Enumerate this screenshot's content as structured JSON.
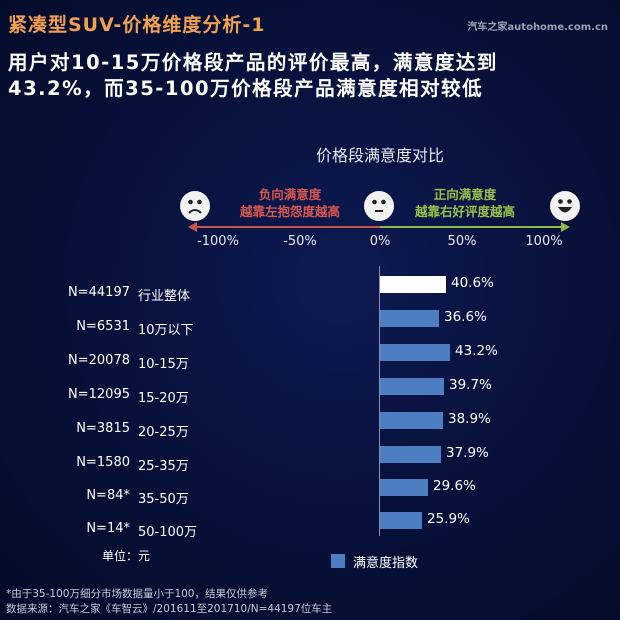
{
  "header": {
    "title": "紧凑型SUV-价格维度分析-1",
    "logo": "汽车之家autohome.com.cn",
    "subtitle_line1": "用户对10-15万价格段产品的评价最高，满意度达到",
    "subtitle_line2": "43.2%，而35-100万价格段产品满意度相对较低"
  },
  "scale": {
    "negative_label_1": "负向满意度",
    "negative_label_2": "越靠左抱怨度越高",
    "positive_label_1": "正向满意度",
    "positive_label_2": "越靠右好评度越高",
    "ticks": [
      "-100%",
      "-50%",
      "0%",
      "50%",
      "100%"
    ],
    "icons": [
      "sad-face-icon",
      "neutral-face-icon",
      "happy-face-icon"
    ],
    "negative_color": "#c9564d",
    "positive_color": "#8fb84a"
  },
  "legend": {
    "label": "满意度指数",
    "color": "#4e7ec2"
  },
  "unit": "单位：元",
  "footnotes": {
    "note": "*由于35-100万细分市场数据量小于100，结果仅供参考",
    "source": "数据来源：汽车之家《车智云》/201611至201710/N=44197位车主"
  },
  "rows": [
    {
      "n": "N=44197",
      "cat": "行业整体",
      "val": "40.6%"
    },
    {
      "n": "N=6531",
      "cat": "10万以下",
      "val": "36.6%"
    },
    {
      "n": "N=20078",
      "cat": "10-15万",
      "val": "43.2%"
    },
    {
      "n": "N=12095",
      "cat": "15-20万",
      "val": "39.7%"
    },
    {
      "n": "N=3815",
      "cat": "20-25万",
      "val": "38.9%"
    },
    {
      "n": "N=1580",
      "cat": "25-35万",
      "val": "37.9%"
    },
    {
      "n": "N=84*",
      "cat": "35-50万",
      "val": "29.6%"
    },
    {
      "n": "N=14*",
      "cat": "50-100万",
      "val": "25.9%"
    }
  ],
  "chart_data": {
    "type": "bar",
    "orientation": "horizontal",
    "title": "价格段满意度对比",
    "categories": [
      "行业整体",
      "10万以下",
      "10-15万",
      "15-20万",
      "20-25万",
      "25-35万",
      "35-50万",
      "50-100万"
    ],
    "sample_sizes": [
      "N=44197",
      "N=6531",
      "N=20078",
      "N=12095",
      "N=3815",
      "N=1580",
      "N=84*",
      "N=14*"
    ],
    "series": [
      {
        "name": "满意度指数",
        "values": [
          40.6,
          36.6,
          43.2,
          39.7,
          38.9,
          37.9,
          29.6,
          25.9
        ]
      }
    ],
    "xlabel": "",
    "ylabel": "",
    "xlim": [
      -100,
      100
    ],
    "x_ticks": [
      "-100%",
      "-50%",
      "0%",
      "50%",
      "100%"
    ],
    "highlight": {
      "category": "行业整体",
      "color": "#ffffff"
    },
    "bar_color": "#4e7ec2",
    "legend_position": "bottom",
    "unit": "单位：元"
  }
}
